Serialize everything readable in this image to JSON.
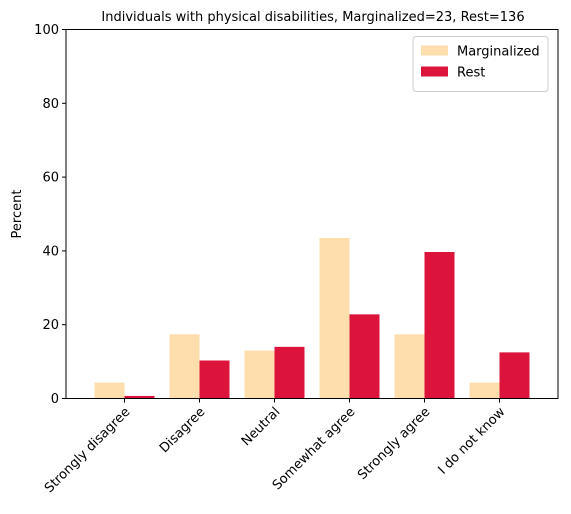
{
  "chart_data": {
    "type": "bar",
    "title": "Individuals with physical disabilities, Marginalized=23, Rest=136",
    "xlabel": "",
    "ylabel": "Percent",
    "ylim": [
      0,
      100
    ],
    "yticks": [
      0,
      20,
      40,
      60,
      80,
      100
    ],
    "categories": [
      "Strongly disagree",
      "Disagree",
      "Neutral",
      "Somewhat agree",
      "Strongly agree",
      "I do not know"
    ],
    "series": [
      {
        "name": "Marginalized",
        "color": "#ffdead",
        "values": [
          4.3,
          17.4,
          13.0,
          43.5,
          17.4,
          4.3
        ]
      },
      {
        "name": "Rest",
        "color": "#dc143c",
        "values": [
          0.7,
          10.3,
          14.0,
          22.8,
          39.7,
          12.5
        ]
      }
    ],
    "legend_position": "top-right",
    "grid": false
  }
}
